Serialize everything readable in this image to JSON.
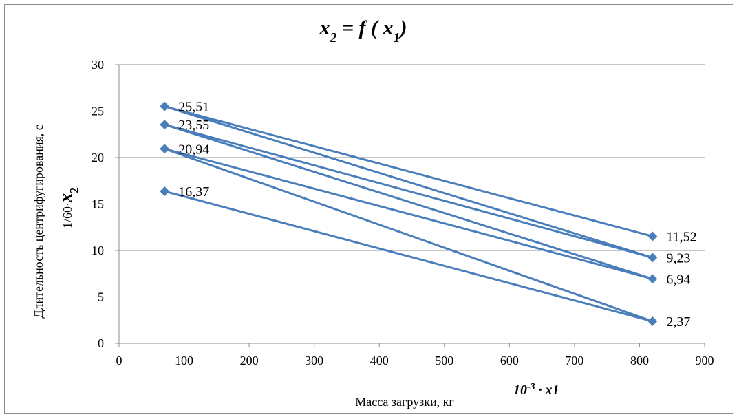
{
  "chart_data": {
    "type": "line",
    "title_parts": {
      "x2": "x",
      "sub2": "2",
      "eq": " = ",
      "f": "f",
      "open": " ( ",
      "x1": "x",
      "sub1": "1",
      "close": ")"
    },
    "xlabel": "Масса загрузки,  кг",
    "xunit": {
      "base": "10",
      "exp": "-3",
      "dot": " · ",
      "var": "x1"
    },
    "ylabel": "Длительность центрифугирования, с",
    "yunit": {
      "prefix": "1/60·",
      "var": "x",
      "sub": "2"
    },
    "xlim": [
      0,
      900
    ],
    "ylim": [
      0,
      30
    ],
    "xticks": [
      0,
      100,
      200,
      300,
      400,
      500,
      600,
      700,
      800,
      900
    ],
    "yticks": [
      0,
      5,
      10,
      15,
      20,
      25,
      30
    ],
    "grid": "horizontal",
    "series_color": "#4a7ebb",
    "polyline": [
      {
        "x": 70,
        "y": 25.51
      },
      {
        "x": 820,
        "y": 11.52
      },
      {
        "x": 70,
        "y": 25.51
      },
      {
        "x": 820,
        "y": 9.23
      },
      {
        "x": 70,
        "y": 23.55
      },
      {
        "x": 820,
        "y": 9.23
      },
      {
        "x": 70,
        "y": 23.55
      },
      {
        "x": 820,
        "y": 6.94
      },
      {
        "x": 70,
        "y": 20.94
      },
      {
        "x": 820,
        "y": 6.94
      },
      {
        "x": 70,
        "y": 20.94
      },
      {
        "x": 820,
        "y": 2.37
      },
      {
        "x": 70,
        "y": 16.37
      },
      {
        "x": 820,
        "y": 2.37
      }
    ],
    "data_labels": [
      {
        "x": 70,
        "y": 25.51,
        "text": "25,51"
      },
      {
        "x": 70,
        "y": 23.55,
        "text": "23,55"
      },
      {
        "x": 70,
        "y": 20.94,
        "text": "20,94"
      },
      {
        "x": 70,
        "y": 16.37,
        "text": "16,37"
      },
      {
        "x": 820,
        "y": 11.52,
        "text": "11,52"
      },
      {
        "x": 820,
        "y": 9.23,
        "text": "9,23"
      },
      {
        "x": 820,
        "y": 6.94,
        "text": "6,94"
      },
      {
        "x": 820,
        "y": 2.37,
        "text": "2,37"
      }
    ]
  }
}
